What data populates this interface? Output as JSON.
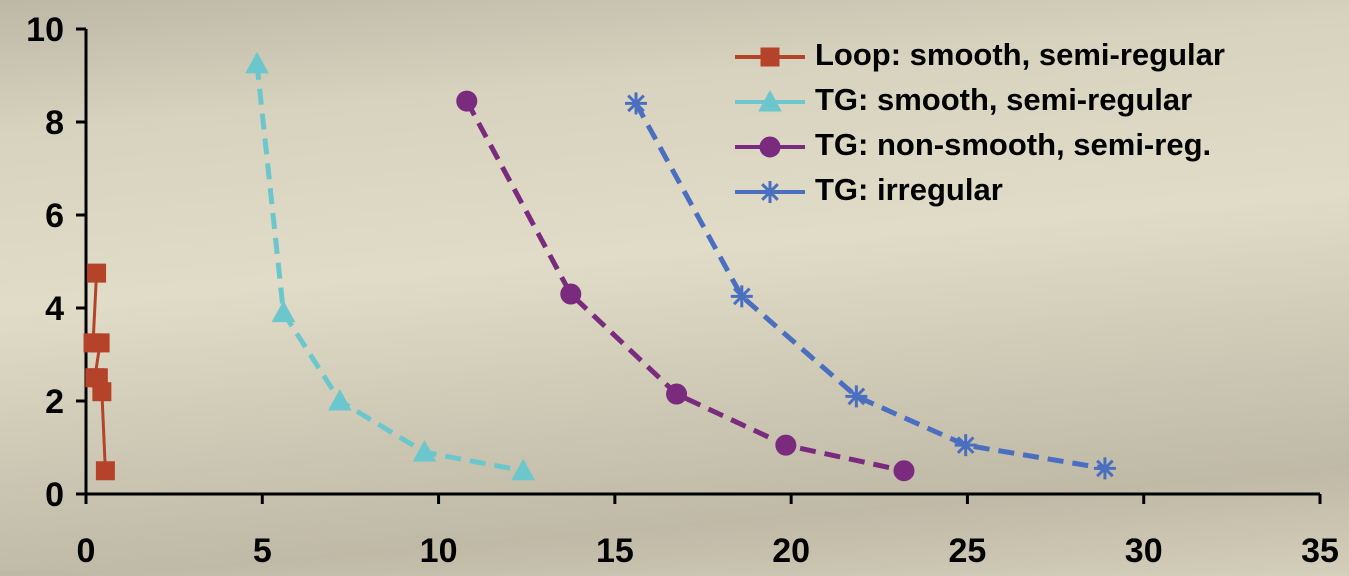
{
  "chart_data": {
    "type": "line",
    "xlim": [
      0,
      35
    ],
    "xticks": [
      0,
      5,
      10,
      15,
      20,
      25,
      30,
      35
    ],
    "ylim": [
      0,
      10
    ],
    "yticks": [
      0,
      2,
      4,
      6,
      8,
      10
    ],
    "legend": "top-right",
    "series": [
      {
        "name": "Loop: smooth, semi-regular",
        "color": "#b5432a",
        "marker": "square",
        "dashed": false,
        "x": [
          0.3,
          0.2,
          0.4,
          0.25,
          0.35,
          0.45,
          0.55
        ],
        "values": [
          4.75,
          3.25,
          3.25,
          2.5,
          2.5,
          2.2,
          0.5
        ]
      },
      {
        "name": "TG: smooth, semi-regular",
        "color": "#6cc7cc",
        "marker": "triangle",
        "dashed": true,
        "x": [
          4.85,
          5.6,
          7.2,
          9.6,
          12.4
        ],
        "values": [
          9.25,
          3.9,
          2.0,
          0.9,
          0.5
        ]
      },
      {
        "name": "TG: non-smooth, semi-reg.",
        "color": "#7a2b7e",
        "marker": "circle",
        "dashed": true,
        "x": [
          10.8,
          13.75,
          16.75,
          19.85,
          23.2
        ],
        "values": [
          8.45,
          4.3,
          2.15,
          1.05,
          0.5
        ]
      },
      {
        "name": "TG: irregular",
        "color": "#4a6fc0",
        "marker": "star",
        "dashed": true,
        "x": [
          15.6,
          18.6,
          21.85,
          24.95,
          28.9
        ],
        "values": [
          8.4,
          4.25,
          2.1,
          1.05,
          0.55
        ]
      }
    ]
  }
}
